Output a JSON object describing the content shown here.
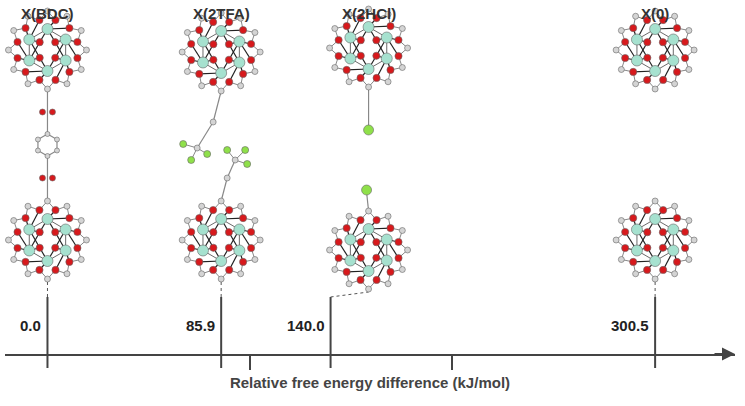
{
  "chart_data": {
    "type": "scatter",
    "categories": [
      "X(BDC)",
      "X(2TFA)",
      "X(2HCl)",
      "X(0)"
    ],
    "values": [
      0.0,
      85.9,
      140.0,
      300.5
    ],
    "value_labels": [
      "0.0",
      "85.9",
      "140.0",
      "300.5"
    ],
    "data_labels": true,
    "xlabel": "Relative free energy difference (kJ/mol)",
    "xlim": [
      -21,
      340
    ],
    "xticks": [
      100,
      200
    ],
    "tick_labels": false,
    "grid": false
  }
}
